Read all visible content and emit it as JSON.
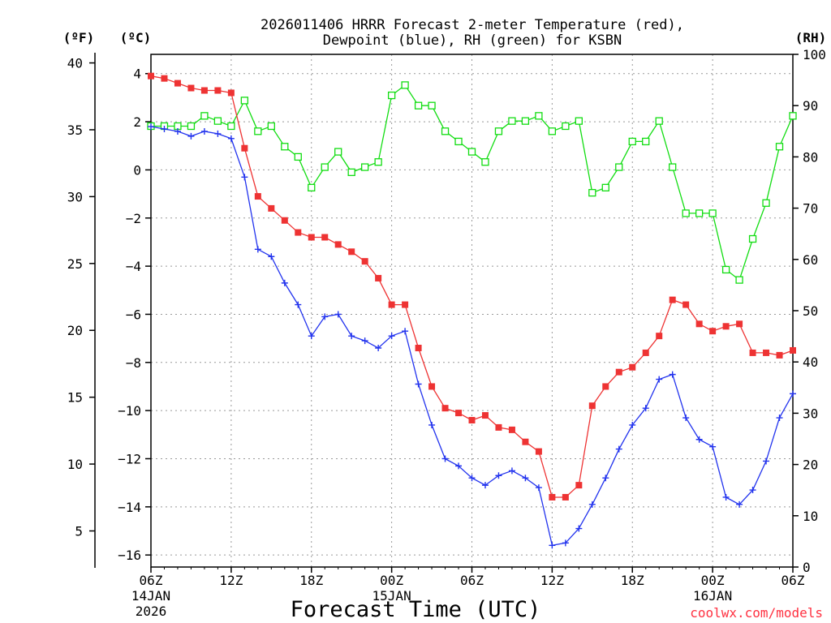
{
  "chart_data": {
    "type": "line",
    "title_line1": "2026011406 HRRR Forecast 2-meter Temperature (red),",
    "title_line2": "Dewpoint (blue), RH (green) for KSBN",
    "xlabel": "Forecast Time (UTC)",
    "credit": "coolwx.com/models",
    "units": {
      "left_outer": "(ºF)",
      "left_inner": "(ºC)",
      "right": "(RH)"
    },
    "x": {
      "range_hours": [
        0,
        48
      ],
      "grid": "dotted"
    },
    "x_ticks": [
      {
        "hour": 0,
        "label": "06Z",
        "day": "14JAN",
        "year": "2026"
      },
      {
        "hour": 6,
        "label": "12Z"
      },
      {
        "hour": 12,
        "label": "18Z"
      },
      {
        "hour": 18,
        "label": "00Z",
        "day": "15JAN"
      },
      {
        "hour": 24,
        "label": "06Z"
      },
      {
        "hour": 30,
        "label": "12Z"
      },
      {
        "hour": 36,
        "label": "18Z"
      },
      {
        "hour": 42,
        "label": "00Z",
        "day": "16JAN"
      },
      {
        "hour": 48,
        "label": "06Z"
      }
    ],
    "y_celsius": {
      "range": [
        -16.5,
        4.8
      ],
      "ticks": [
        4,
        2,
        0,
        -2,
        -4,
        -6,
        -8,
        -10,
        -12,
        -14,
        -16
      ],
      "tick_labels": [
        "4",
        "2",
        "0",
        "−2",
        "−4",
        "−6",
        "−8",
        "−10",
        "−12",
        "−14",
        "−16"
      ]
    },
    "y_fahrenheit": {
      "ticks": [
        40,
        35,
        30,
        25,
        20,
        15,
        10,
        5
      ]
    },
    "y_rh": {
      "range": [
        0,
        100
      ],
      "ticks": [
        100,
        90,
        80,
        70,
        60,
        50,
        40,
        30,
        20,
        10,
        0
      ]
    },
    "series": [
      {
        "name": "2-meter Temperature",
        "unit": "C",
        "color": "#ee3333",
        "marker": "filled-square",
        "values": [
          3.9,
          3.8,
          3.6,
          3.4,
          3.3,
          3.3,
          3.2,
          0.9,
          -1.1,
          -1.6,
          -2.1,
          -2.6,
          -2.8,
          -2.8,
          -3.1,
          -3.4,
          -3.8,
          -4.5,
          -5.6,
          -5.6,
          -7.4,
          -9.0,
          -9.9,
          -10.1,
          -10.4,
          -10.2,
          -10.7,
          -10.8,
          -11.3,
          -11.7,
          -13.6,
          -13.6,
          -13.1,
          -9.8,
          -9.0,
          -8.4,
          -8.2,
          -7.6,
          -6.9,
          -5.4,
          -5.6,
          -6.4,
          -6.7,
          -6.5,
          -6.4,
          -7.6,
          -7.6,
          -7.7,
          -7.5
        ]
      },
      {
        "name": "Dewpoint",
        "unit": "C",
        "color": "#2233ee",
        "marker": "plus",
        "values": [
          1.8,
          1.7,
          1.6,
          1.4,
          1.6,
          1.5,
          1.3,
          -0.3,
          -3.3,
          -3.6,
          -4.7,
          -5.6,
          -6.9,
          -6.1,
          -6.0,
          -6.9,
          -7.1,
          -7.4,
          -6.9,
          -6.7,
          -8.9,
          -10.6,
          -12.0,
          -12.3,
          -12.8,
          -13.1,
          -12.7,
          -12.5,
          -12.8,
          -13.2,
          -15.6,
          -15.5,
          -14.9,
          -13.9,
          -12.8,
          -11.6,
          -10.6,
          -9.9,
          -8.7,
          -8.5,
          -10.3,
          -11.2,
          -11.5,
          -13.6,
          -13.9,
          -13.3,
          -12.1,
          -10.3,
          -9.3
        ]
      },
      {
        "name": "Relative Humidity",
        "unit": "%",
        "color": "#11dd11",
        "marker": "open-square",
        "values": [
          86,
          86,
          86,
          86,
          88,
          87,
          86,
          91,
          85,
          86,
          82,
          80,
          74,
          78,
          81,
          77,
          78,
          79,
          92,
          94,
          90,
          90,
          85,
          83,
          81,
          79,
          85,
          87,
          87,
          88,
          85,
          86,
          87,
          73,
          74,
          78,
          83,
          83,
          87,
          78,
          69,
          69,
          69,
          58,
          56,
          64,
          71,
          82,
          88
        ]
      }
    ]
  }
}
